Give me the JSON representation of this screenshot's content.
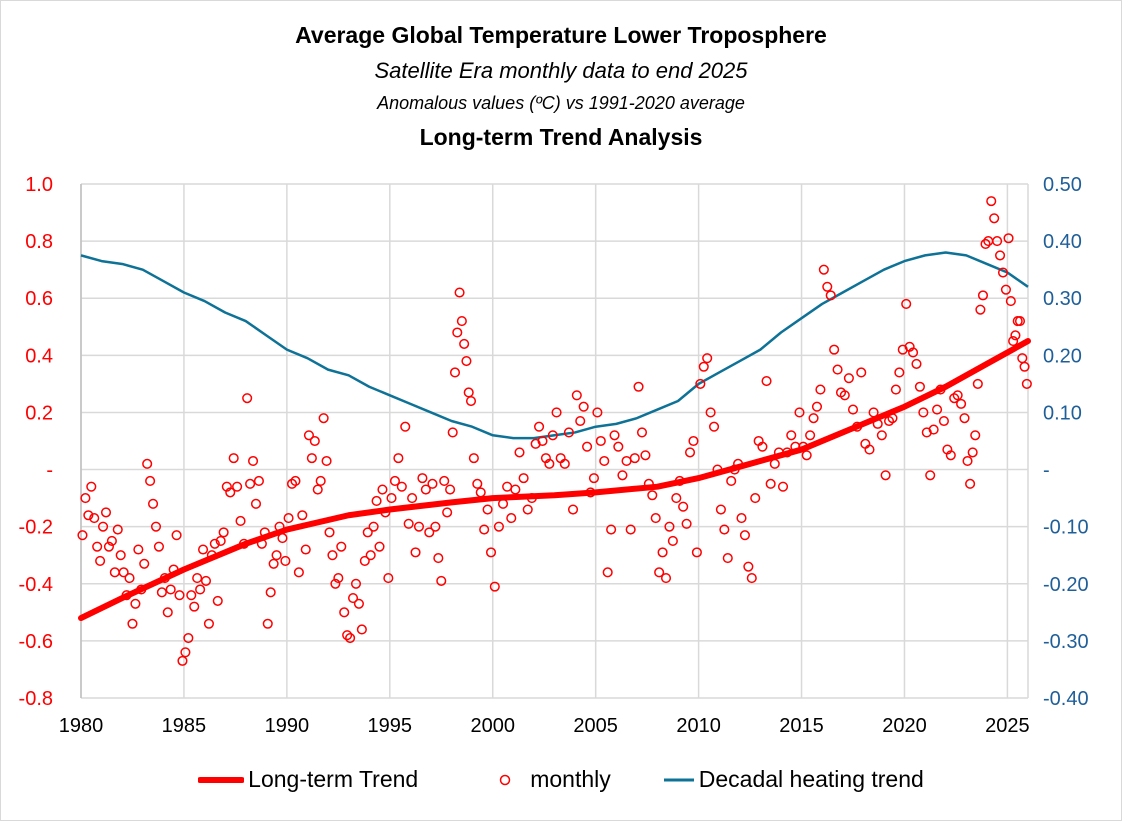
{
  "chart_data": {
    "type": "scatter",
    "title": "Average Global Temperature Lower Troposphere",
    "subtitle": "Satellite Era monthly data to end 2025",
    "subtitle2": "Anomalous values (ºC) vs 1991-2020 average",
    "subtitle3": "Long-term Trend Analysis",
    "xlim": [
      1980,
      2026
    ],
    "ylim_left": [
      -0.8,
      1.0
    ],
    "ylim_right": [
      -0.4,
      0.5
    ],
    "grid": true,
    "legend_placement": "bottom",
    "x_ticks": [
      "1980",
      "1985",
      "1990",
      "1995",
      "2000",
      "2005",
      "2010",
      "2015",
      "2020",
      "2025"
    ],
    "y_ticks_left": [
      "1.0",
      "0.8",
      "0.6",
      "0.4",
      "0.2",
      "-",
      "-0.2",
      "-0.4",
      "-0.6",
      "-0.8"
    ],
    "y_ticks_right": [
      "0.50",
      "0.40",
      "0.30",
      "0.20",
      "0.10",
      "-",
      "-0.10",
      "-0.20",
      "-0.30",
      "-0.40"
    ],
    "colors": {
      "trend": "#ff0000",
      "monthly": "#ff0000",
      "decadal": "#0e7297",
      "left_axis": "#ff0000",
      "right_axis": "#1f5f99",
      "grid": "#d9d9d9"
    },
    "series": [
      {
        "name": "Long-term Trend",
        "type": "line",
        "axis": "left",
        "x": [
          1980,
          1982,
          1985,
          1988,
          1990,
          1993,
          1995,
          1998,
          2000,
          2003,
          2005,
          2008,
          2010,
          2012,
          2015,
          2018,
          2020,
          2022,
          2024,
          2025,
          2026
        ],
        "y": [
          -0.52,
          -0.45,
          -0.35,
          -0.26,
          -0.21,
          -0.16,
          -0.14,
          -0.115,
          -0.1,
          -0.09,
          -0.08,
          -0.06,
          -0.03,
          0.01,
          0.07,
          0.16,
          0.22,
          0.29,
          0.37,
          0.41,
          0.45
        ]
      },
      {
        "name": "monthly",
        "type": "scatter",
        "axis": "left",
        "by_year": {
          "1980": [
            -0.23,
            -0.1,
            -0.16,
            -0.06,
            -0.17,
            -0.27,
            -0.32
          ],
          "1981": [
            -0.2,
            -0.15,
            -0.27,
            -0.25,
            -0.36,
            -0.21,
            -0.3
          ],
          "1982": [
            -0.36,
            -0.44,
            -0.38,
            -0.54,
            -0.47,
            -0.28,
            -0.42
          ],
          "1983": [
            -0.33,
            0.02,
            -0.04,
            -0.12,
            -0.2,
            -0.27,
            -0.43
          ],
          "1984": [
            -0.38,
            -0.5,
            -0.42,
            -0.35,
            -0.23,
            -0.44,
            -0.67
          ],
          "1985": [
            -0.64,
            -0.59,
            -0.44,
            -0.48,
            -0.38,
            -0.42,
            -0.28
          ],
          "1986": [
            -0.39,
            -0.54,
            -0.3,
            -0.26,
            -0.46,
            -0.25,
            -0.22
          ],
          "1987": [
            -0.06,
            -0.08,
            0.04,
            -0.06,
            -0.18,
            -0.26
          ],
          "1988": [
            0.25,
            -0.05,
            0.03,
            -0.12,
            -0.04,
            -0.26,
            -0.22
          ],
          "1989": [
            -0.54,
            -0.43,
            -0.33,
            -0.3,
            -0.2,
            -0.24,
            -0.32
          ],
          "1990": [
            -0.17,
            -0.05,
            -0.04,
            -0.36,
            -0.16,
            -0.28
          ],
          "1991": [
            0.12,
            0.04,
            0.1,
            -0.07,
            -0.04,
            0.18,
            0.03
          ],
          "1992": [
            -0.22,
            -0.3,
            -0.4,
            -0.38,
            -0.27,
            -0.5,
            -0.58
          ],
          "1993": [
            -0.59,
            -0.45,
            -0.4,
            -0.47,
            -0.56,
            -0.32,
            -0.22
          ],
          "1994": [
            -0.3,
            -0.2,
            -0.11,
            -0.27,
            -0.07,
            -0.15,
            -0.38
          ],
          "1995": [
            -0.1,
            -0.04,
            0.04,
            -0.06,
            0.15,
            -0.19
          ],
          "1996": [
            -0.1,
            -0.29,
            -0.2,
            -0.03,
            -0.07,
            -0.22
          ],
          "1997": [
            -0.05,
            -0.2,
            -0.31,
            -0.39,
            -0.04,
            -0.15,
            -0.07
          ],
          "1998": [
            0.13,
            0.34,
            0.48,
            0.62,
            0.52,
            0.44,
            0.38,
            0.27,
            0.24
          ],
          "1999": [
            0.04,
            -0.05,
            -0.08,
            -0.21,
            -0.14,
            -0.29
          ],
          "2000": [
            -0.41,
            -0.2,
            -0.12,
            -0.06,
            -0.17
          ],
          "2001": [
            -0.07,
            0.06,
            -0.03,
            -0.14,
            -0.1
          ],
          "2002": [
            0.09,
            0.15,
            0.1,
            0.04,
            0.02,
            0.12
          ],
          "2003": [
            0.2,
            0.04,
            0.02,
            0.13,
            -0.14
          ],
          "2004": [
            0.26,
            0.17,
            0.22,
            0.08,
            -0.08,
            -0.03
          ],
          "2005": [
            0.2,
            0.1,
            0.03,
            -0.36,
            -0.21,
            0.12
          ],
          "2006": [
            0.08,
            -0.02,
            0.03,
            -0.21,
            0.04
          ],
          "2007": [
            0.29,
            0.13,
            0.05,
            -0.05,
            -0.09,
            -0.17
          ],
          "2008": [
            -0.36,
            -0.29,
            -0.38,
            -0.2,
            -0.25,
            -0.1
          ],
          "2009": [
            -0.04,
            -0.13,
            -0.19,
            0.06,
            0.1,
            -0.29
          ],
          "2010": [
            0.3,
            0.36,
            0.39,
            0.2,
            0.15,
            0.0
          ],
          "2011": [
            -0.14,
            -0.21,
            -0.31,
            -0.04,
            0.0,
            0.02
          ],
          "2012": [
            -0.17,
            -0.23,
            -0.34,
            -0.38,
            -0.1,
            0.1
          ],
          "2013": [
            0.08,
            0.31,
            -0.05,
            0.02,
            0.06
          ],
          "2014": [
            -0.06,
            0.06,
            0.12,
            0.08,
            0.2
          ],
          "2015": [
            0.08,
            0.05,
            0.12,
            0.18,
            0.22,
            0.28
          ],
          "2016": [
            0.7,
            0.64,
            0.61,
            0.42,
            0.35,
            0.27
          ],
          "2017": [
            0.26,
            0.32,
            0.21,
            0.15,
            0.34
          ],
          "2018": [
            0.09,
            0.07,
            0.2,
            0.16,
            0.12
          ],
          "2019": [
            -0.02,
            0.17,
            0.18,
            0.28,
            0.34,
            0.42
          ],
          "2020": [
            0.58,
            0.43,
            0.41,
            0.37,
            0.29,
            0.2
          ],
          "2021": [
            0.13,
            -0.02,
            0.14,
            0.21,
            0.28,
            0.17
          ],
          "2022": [
            0.07,
            0.05,
            0.25,
            0.26,
            0.23,
            0.18
          ],
          "2023": [
            0.03,
            -0.05,
            0.06,
            0.12,
            0.3,
            0.56,
            0.61,
            0.79
          ],
          "2024": [
            0.8,
            0.94,
            0.88,
            0.8,
            0.75,
            0.69,
            0.63
          ],
          "2025": [
            0.81,
            0.59,
            0.45,
            0.47,
            0.52,
            0.52,
            0.39,
            0.36,
            0.3
          ]
        }
      },
      {
        "name": "Decadal heating trend",
        "type": "line",
        "axis": "right",
        "x": [
          1980,
          1981,
          1982,
          1983,
          1984,
          1985,
          1986,
          1987,
          1988,
          1989,
          1990,
          1991,
          1992,
          1993,
          1994,
          1995,
          1996,
          1997,
          1998,
          1999,
          2000,
          2001,
          2002,
          2003,
          2004,
          2005,
          2006,
          2007,
          2008,
          2009,
          2010,
          2011,
          2012,
          2013,
          2014,
          2015,
          2016,
          2017,
          2018,
          2019,
          2020,
          2021,
          2022,
          2023,
          2024,
          2025,
          2026
        ],
        "y": [
          0.375,
          0.365,
          0.36,
          0.35,
          0.33,
          0.31,
          0.295,
          0.275,
          0.26,
          0.235,
          0.21,
          0.195,
          0.175,
          0.165,
          0.145,
          0.13,
          0.115,
          0.1,
          0.085,
          0.075,
          0.06,
          0.055,
          0.055,
          0.06,
          0.065,
          0.075,
          0.08,
          0.09,
          0.105,
          0.12,
          0.15,
          0.17,
          0.19,
          0.21,
          0.24,
          0.265,
          0.29,
          0.31,
          0.33,
          0.35,
          0.365,
          0.375,
          0.38,
          0.375,
          0.36,
          0.345,
          0.32
        ]
      }
    ]
  }
}
